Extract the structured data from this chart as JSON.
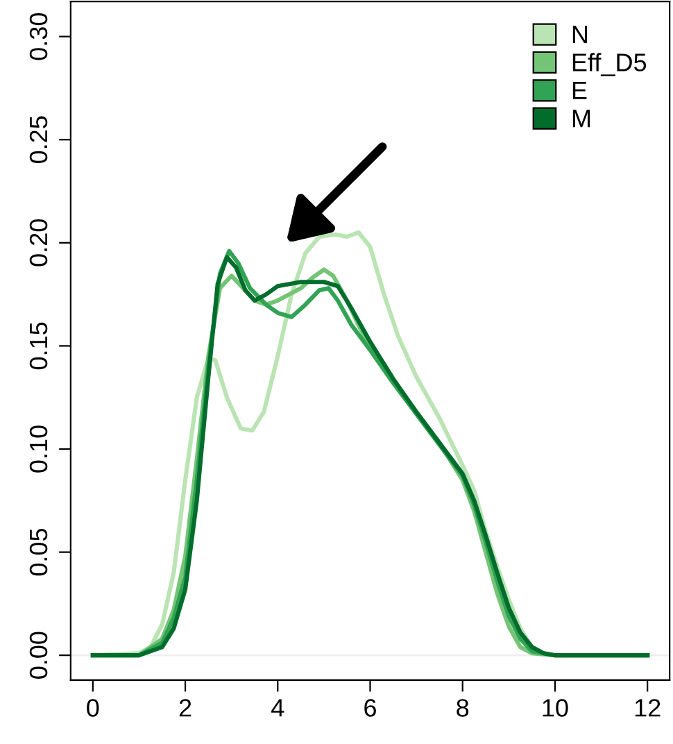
{
  "chart_data": {
    "type": "line",
    "xlim": [
      -0.48,
      12.48
    ],
    "ylim": [
      -0.012,
      0.317
    ],
    "xticks": [
      0,
      2,
      4,
      6,
      8,
      10,
      12
    ],
    "yticks": [
      {
        "value": 0,
        "label": "0.00"
      },
      {
        "value": 0.05,
        "label": "0.05"
      },
      {
        "value": 0.1,
        "label": "0.10"
      },
      {
        "value": 0.15,
        "label": "0.15"
      },
      {
        "value": 0.2,
        "label": "0.20"
      },
      {
        "value": 0.25,
        "label": "0.25"
      },
      {
        "value": 0.3,
        "label": "0.30"
      }
    ],
    "grid": false,
    "legend": "top right",
    "ref_lines": [
      {
        "axis": "y",
        "value": 0,
        "color": "#eeeeee"
      }
    ],
    "series": [
      {
        "name": "N",
        "color": "#bae4b3",
        "x": [
          0,
          1,
          1.25,
          1.5,
          1.75,
          2.0,
          2.25,
          2.5,
          2.65,
          2.9,
          3.2,
          3.45,
          3.7,
          4.0,
          4.3,
          4.6,
          4.9,
          5.25,
          5.5,
          5.75,
          6.0,
          6.3,
          6.6,
          7.0,
          7.5,
          8.0,
          8.25,
          8.5,
          8.75,
          9.0,
          9.25,
          9.5,
          9.75,
          10,
          12
        ],
        "values": [
          0,
          0.001,
          0.004,
          0.015,
          0.04,
          0.085,
          0.125,
          0.144,
          0.143,
          0.125,
          0.11,
          0.109,
          0.118,
          0.145,
          0.175,
          0.195,
          0.203,
          0.204,
          0.203,
          0.205,
          0.198,
          0.175,
          0.155,
          0.135,
          0.115,
          0.092,
          0.08,
          0.06,
          0.043,
          0.027,
          0.013,
          0.004,
          0.001,
          0,
          0
        ]
      },
      {
        "name": "Eff_D5",
        "color": "#74c476",
        "x": [
          0,
          1,
          1.5,
          1.75,
          2.0,
          2.25,
          2.5,
          2.75,
          3.0,
          3.25,
          3.5,
          3.75,
          4.0,
          4.25,
          4.5,
          4.75,
          5.0,
          5.2,
          5.5,
          5.75,
          6.0,
          6.5,
          7.0,
          7.5,
          8.0,
          8.25,
          8.5,
          8.75,
          9.0,
          9.25,
          9.5,
          10,
          12
        ],
        "values": [
          0,
          0,
          0.008,
          0.022,
          0.048,
          0.095,
          0.145,
          0.178,
          0.184,
          0.178,
          0.172,
          0.17,
          0.172,
          0.175,
          0.178,
          0.183,
          0.187,
          0.184,
          0.172,
          0.16,
          0.15,
          0.133,
          0.118,
          0.103,
          0.085,
          0.07,
          0.05,
          0.03,
          0.014,
          0.004,
          0.001,
          0,
          0
        ]
      },
      {
        "name": "E",
        "color": "#31a354",
        "x": [
          0,
          1,
          1.5,
          1.75,
          2.0,
          2.25,
          2.5,
          2.75,
          2.95,
          3.15,
          3.4,
          3.75,
          4.0,
          4.3,
          4.6,
          4.9,
          5.1,
          5.3,
          5.6,
          6.0,
          6.5,
          7.0,
          7.5,
          8.0,
          8.25,
          8.5,
          8.75,
          9.0,
          9.25,
          9.5,
          10,
          12
        ],
        "values": [
          0,
          0,
          0.006,
          0.018,
          0.038,
          0.085,
          0.14,
          0.185,
          0.196,
          0.19,
          0.178,
          0.17,
          0.166,
          0.164,
          0.17,
          0.177,
          0.178,
          0.172,
          0.16,
          0.148,
          0.132,
          0.117,
          0.102,
          0.087,
          0.073,
          0.055,
          0.036,
          0.019,
          0.008,
          0.002,
          0,
          0
        ]
      },
      {
        "name": "M",
        "color": "#006d2c",
        "x": [
          0,
          1,
          1.5,
          1.75,
          2.0,
          2.25,
          2.5,
          2.7,
          2.9,
          3.1,
          3.3,
          3.5,
          3.75,
          4.0,
          4.5,
          5.0,
          5.3,
          5.6,
          6.0,
          6.5,
          7.0,
          7.5,
          8.0,
          8.25,
          8.5,
          8.75,
          9.0,
          9.25,
          9.5,
          9.75,
          10,
          12
        ],
        "values": [
          0,
          0,
          0.004,
          0.013,
          0.032,
          0.075,
          0.135,
          0.18,
          0.193,
          0.188,
          0.177,
          0.172,
          0.175,
          0.179,
          0.181,
          0.181,
          0.179,
          0.168,
          0.152,
          0.134,
          0.118,
          0.103,
          0.088,
          0.075,
          0.058,
          0.04,
          0.023,
          0.011,
          0.004,
          0.001,
          0,
          0
        ]
      }
    ]
  }
}
